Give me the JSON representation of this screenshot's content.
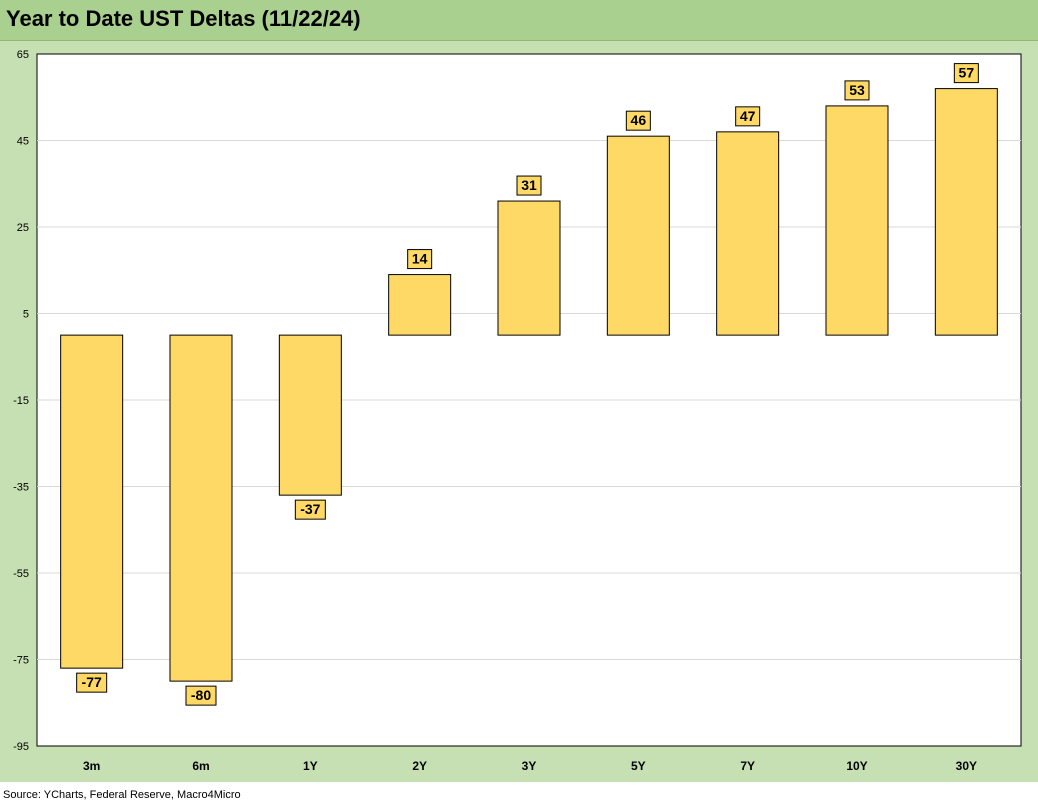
{
  "title": "Year to Date UST Deltas (11/22/24)",
  "source": "Source: YCharts, Federal Reserve, Macro4Micro",
  "colors": {
    "header_bg": "#a9d08e",
    "frame_bg": "#c6e0b4",
    "bar_fill": "#ffd966",
    "bar_stroke": "#000000",
    "gridline": "#d9d9d9"
  },
  "chart_data": {
    "type": "bar",
    "categories": [
      "3m",
      "6m",
      "1Y",
      "2Y",
      "3Y",
      "5Y",
      "7Y",
      "10Y",
      "30Y"
    ],
    "values": [
      -77,
      -80,
      -37,
      14,
      31,
      46,
      47,
      53,
      57
    ],
    "data_labels": [
      "-77",
      "-80",
      "-37",
      "14",
      "31",
      "46",
      "47",
      "53",
      "57"
    ],
    "title": "Year to Date UST Deltas (11/22/24)",
    "xlabel": "",
    "ylabel": "",
    "ylim": [
      -95,
      65
    ],
    "yticks": [
      65,
      45,
      25,
      5,
      -15,
      -35,
      -55,
      -75,
      -95
    ],
    "grid": true,
    "legend": "none"
  }
}
